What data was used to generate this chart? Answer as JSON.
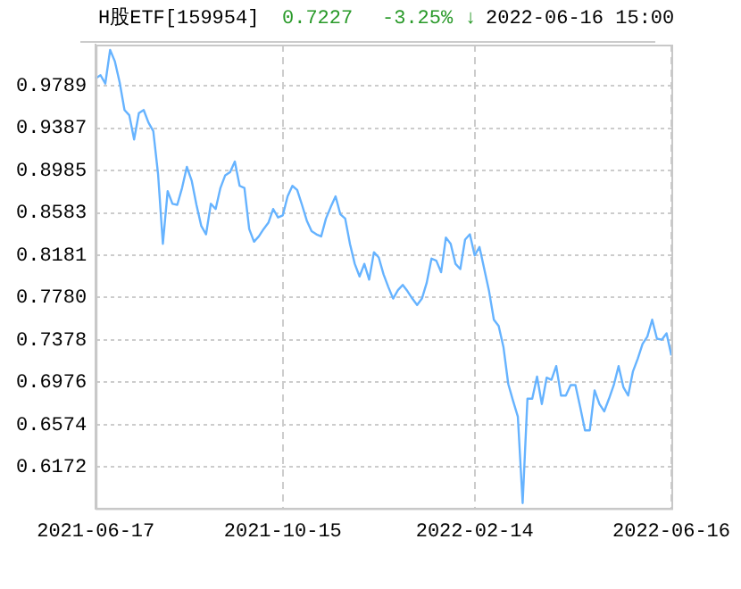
{
  "chart_data": {
    "type": "line",
    "title": "H股ETF[159954]",
    "annotations": [
      "0.7227",
      "-3.25% ↓",
      "2022-06-16 15:00"
    ],
    "categories": [
      "2021-06-17",
      null,
      null,
      null,
      null,
      null,
      null,
      null,
      null,
      null,
      null,
      null,
      null,
      null,
      null,
      null,
      null,
      null,
      null,
      null,
      null,
      null,
      null,
      null,
      null,
      null,
      null,
      null,
      null,
      null,
      null,
      null,
      null,
      null,
      null,
      null,
      null,
      null,
      null,
      "2021-10-15",
      null,
      null,
      null,
      null,
      null,
      null,
      null,
      null,
      null,
      null,
      null,
      null,
      null,
      null,
      null,
      null,
      null,
      null,
      null,
      null,
      null,
      null,
      null,
      null,
      null,
      null,
      null,
      null,
      null,
      null,
      null,
      null,
      null,
      null,
      null,
      null,
      null,
      null,
      null,
      "2022-02-14",
      null,
      null,
      null,
      null,
      null,
      null,
      null,
      null,
      null,
      null,
      null,
      null,
      null,
      null,
      null,
      null,
      null,
      null,
      null,
      null,
      null,
      null,
      null,
      null,
      null,
      null,
      null,
      null,
      null,
      null,
      null,
      null,
      null,
      null,
      null,
      null,
      null,
      null,
      null,
      null,
      "2022-06-16"
    ],
    "series": [
      {
        "color": "#66b3ff",
        "values": [
          0.986,
          0.989,
          0.981,
          1.013,
          1.002,
          0.982,
          0.956,
          0.951,
          0.928,
          0.953,
          0.956,
          0.944,
          0.936,
          0.895,
          0.829,
          0.879,
          0.867,
          0.866,
          0.882,
          0.902,
          0.889,
          0.866,
          0.846,
          0.838,
          0.867,
          0.862,
          0.882,
          0.894,
          0.897,
          0.907,
          0.884,
          0.882,
          0.843,
          0.831,
          0.836,
          0.843,
          0.849,
          0.862,
          0.854,
          0.856,
          0.874,
          0.884,
          0.88,
          0.866,
          0.851,
          0.841,
          0.838,
          0.836,
          0.853,
          0.864,
          0.874,
          0.857,
          0.853,
          0.829,
          0.81,
          0.798,
          0.81,
          0.795,
          0.821,
          0.816,
          0.8,
          0.788,
          0.777,
          0.785,
          0.79,
          0.784,
          0.777,
          0.771,
          0.777,
          0.792,
          0.815,
          0.813,
          0.802,
          0.835,
          0.829,
          0.81,
          0.805,
          0.833,
          0.838,
          0.818,
          0.826,
          0.805,
          0.784,
          0.757,
          0.751,
          0.731,
          0.696,
          0.68,
          0.665,
          0.583,
          0.682,
          0.682,
          0.703,
          0.677,
          0.702,
          0.7,
          0.713,
          0.685,
          0.685,
          0.695,
          0.695,
          0.674,
          0.652,
          0.652,
          0.69,
          0.677,
          0.67,
          0.682,
          0.695,
          0.713,
          0.693,
          0.685,
          0.708,
          0.72,
          0.734,
          0.741,
          0.757,
          0.739,
          0.738,
          0.744,
          0.723
        ]
      }
    ],
    "ylim": [
      0.578,
      1.018
    ],
    "yticks": [
      0.6172,
      0.6574,
      0.6976,
      0.7378,
      {
        "value": 0.778,
        "label": "0.7780"
      },
      0.8181,
      0.8583,
      0.8985,
      0.9387,
      0.9789
    ],
    "grid": true,
    "legend": false,
    "marker": "none",
    "line_style": "solid"
  }
}
